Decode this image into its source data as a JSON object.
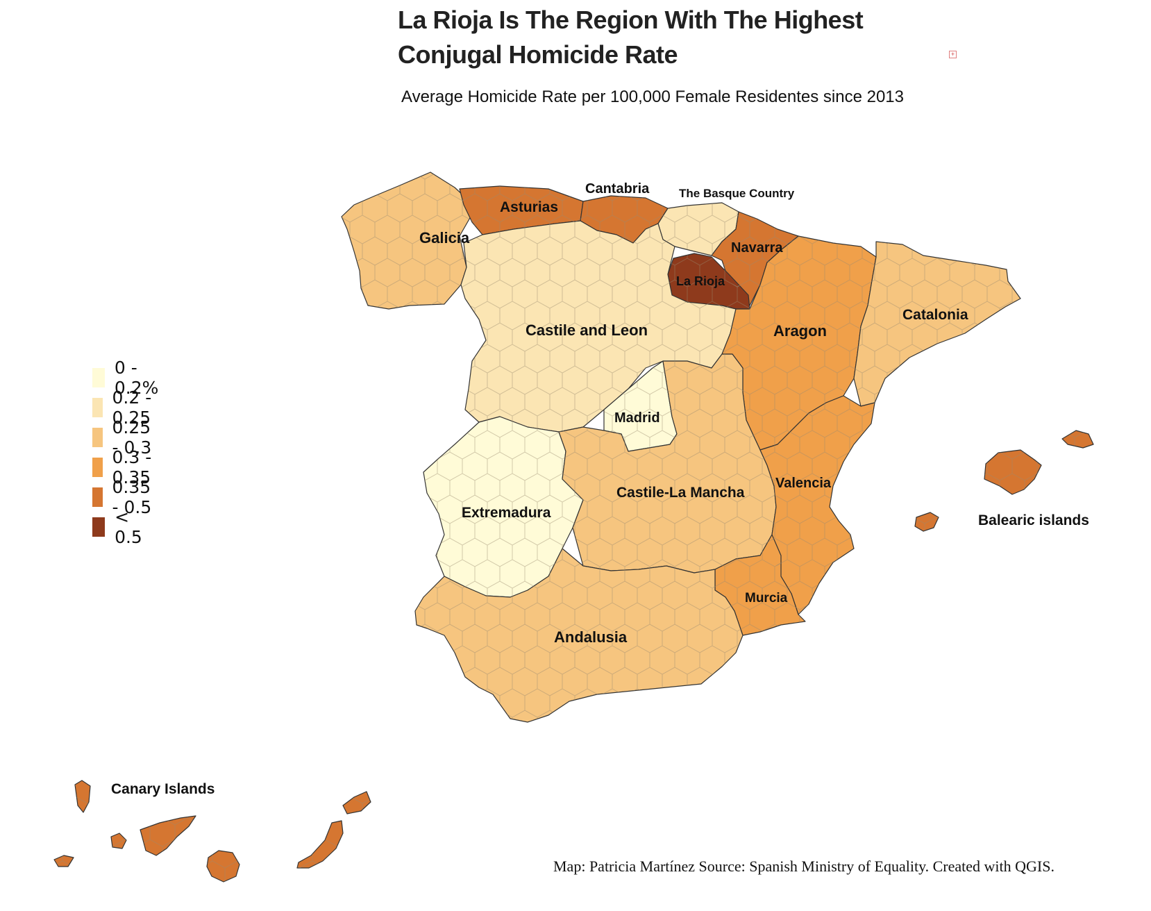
{
  "title": "La Rioja Is The Region With The Highest Conjugal Homicide Rate",
  "subtitle": "Average Homicide Rate per 100,000 Female Residentes since 2013",
  "credit": "Map: Patricia Martínez  Source: Spanish Ministry of Equality. Created with QGIS.",
  "legend": [
    {
      "label": "0 - 0.2%",
      "color": "#fffbd7"
    },
    {
      "label": "0.2 - 0.25",
      "color": "#fbe5b3"
    },
    {
      "label": "0.25 - 0.3",
      "color": "#f6c57f"
    },
    {
      "label": "0.3 - 0.35",
      "color": "#f0a04a"
    },
    {
      "label": "0.35 - 0.5",
      "color": "#d57631"
    },
    {
      "label": "< 0.5",
      "color": "#8e3a1c"
    }
  ],
  "regions": {
    "galicia": {
      "label": "Galicia",
      "class": "0.25 - 0.3"
    },
    "asturias": {
      "label": "Asturias",
      "class": "0.35 - 0.5"
    },
    "cantabria": {
      "label": "Cantabria",
      "class": "0.35 - 0.5"
    },
    "basque": {
      "label": "The Basque Country",
      "class": "0.2 - 0.25"
    },
    "navarra": {
      "label": "Navarra",
      "class": "0.35 - 0.5"
    },
    "rioja": {
      "label": "La Rioja",
      "class": "< 0.5"
    },
    "castile_leon": {
      "label": "Castile and Leon",
      "class": "0.2 - 0.25"
    },
    "aragon": {
      "label": "Aragon",
      "class": "0.3 - 0.35"
    },
    "catalonia": {
      "label": "Catalonia",
      "class": "0.25 - 0.3"
    },
    "madrid": {
      "label": "Madrid",
      "class": "0 - 0.2%"
    },
    "extremadura": {
      "label": "Extremadura",
      "class": "0 - 0.2%"
    },
    "castile_la_mancha": {
      "label": "Castile-La Mancha",
      "class": "0.25 - 0.3"
    },
    "valencia": {
      "label": "Valencia",
      "class": "0.3 - 0.35"
    },
    "murcia": {
      "label": "Murcia",
      "class": "0.3 - 0.35"
    },
    "andalusia": {
      "label": "Andalusia",
      "class": "0.25 - 0.3"
    },
    "balearic": {
      "label": "Balearic islands",
      "class": "0.35 - 0.5"
    },
    "canary": {
      "label": "Canary Islands",
      "class": "0.35 - 0.5"
    }
  }
}
